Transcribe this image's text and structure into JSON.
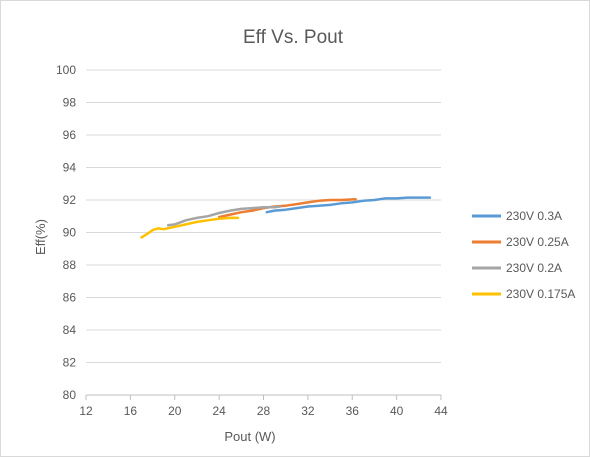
{
  "chart_data": {
    "type": "line",
    "title": "Eff Vs. Pout",
    "xlabel": "Pout (W)",
    "ylabel": "Eff(%)",
    "xlim": [
      12,
      44
    ],
    "ylim": [
      80,
      100
    ],
    "xticks": [
      "12",
      "16",
      "20",
      "24",
      "28",
      "32",
      "36",
      "40",
      "44"
    ],
    "yticks": [
      "80",
      "82",
      "84",
      "86",
      "88",
      "90",
      "92",
      "94",
      "96",
      "98",
      "100"
    ],
    "grid": "horizontal",
    "legend_position": "right",
    "series": [
      {
        "name": "230V 0.3A",
        "color": "#5b9bd5",
        "x": [
          28.3,
          29.0,
          30.0,
          31.0,
          32.0,
          33.0,
          34.0,
          35.0,
          36.0,
          37.0,
          38.0,
          39.0,
          40.0,
          41.0,
          42.0,
          43.0
        ],
        "y": [
          91.25,
          91.35,
          91.4,
          91.5,
          91.6,
          91.65,
          91.7,
          91.8,
          91.85,
          91.95,
          92.0,
          92.1,
          92.1,
          92.15,
          92.15,
          92.15
        ]
      },
      {
        "name": "230V 0.25A",
        "color": "#ed7d31",
        "x": [
          24.0,
          25.0,
          26.0,
          27.0,
          28.0,
          29.0,
          30.0,
          31.0,
          32.0,
          33.0,
          34.0,
          35.0,
          36.3
        ],
        "y": [
          90.95,
          91.1,
          91.25,
          91.35,
          91.5,
          91.6,
          91.65,
          91.75,
          91.85,
          91.95,
          92.0,
          92.0,
          92.05
        ]
      },
      {
        "name": "230V 0.2A",
        "color": "#a5a5a5",
        "x": [
          19.4,
          20.0,
          21.0,
          22.0,
          23.0,
          24.0,
          25.0,
          26.0,
          27.0,
          28.0,
          29.0,
          29.5
        ],
        "y": [
          90.45,
          90.5,
          90.75,
          90.9,
          91.0,
          91.2,
          91.35,
          91.45,
          91.5,
          91.55,
          91.55,
          91.6
        ]
      },
      {
        "name": "230V 0.175A",
        "color": "#ffc000",
        "x": [
          17.0,
          17.5,
          18.0,
          18.5,
          19.0,
          20.0,
          21.0,
          22.0,
          23.0,
          24.0,
          25.0,
          25.7
        ],
        "y": [
          89.7,
          89.9,
          90.15,
          90.25,
          90.2,
          90.35,
          90.5,
          90.65,
          90.75,
          90.85,
          90.9,
          90.9
        ]
      }
    ]
  }
}
